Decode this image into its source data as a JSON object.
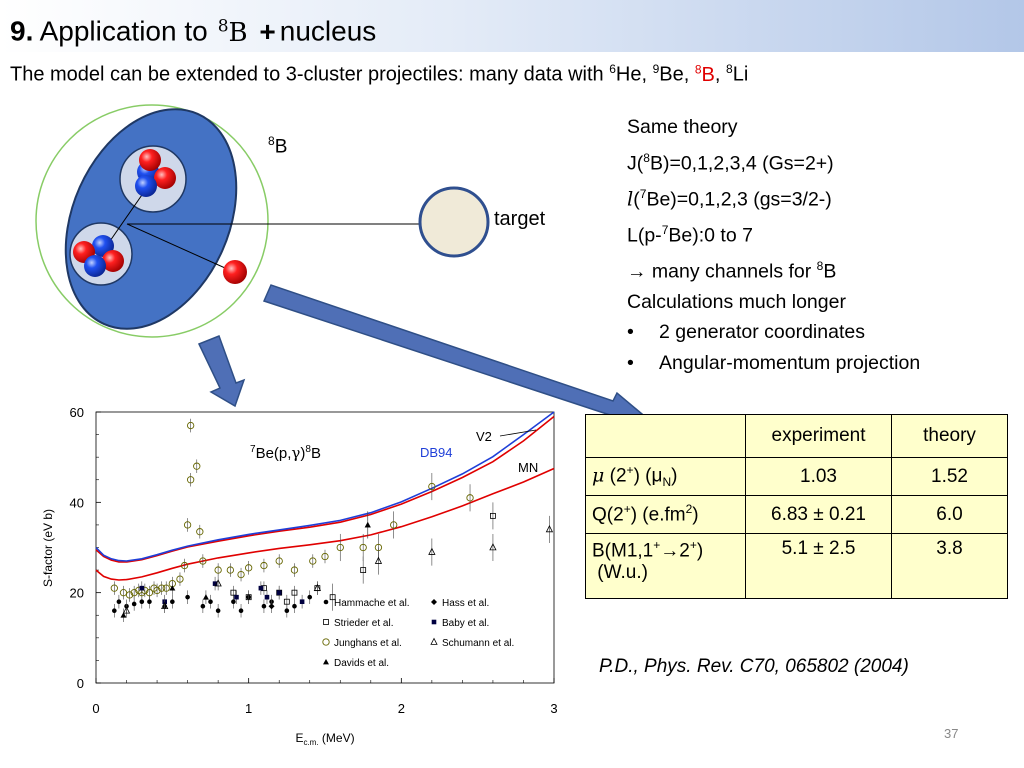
{
  "title": {
    "number": "9.",
    "text": "Application to",
    "nucleus_mass": "8",
    "nucleus_sym": "B",
    "plus": "+",
    "rest": "nucleus"
  },
  "subtitle": {
    "text": "The model can be extended to 3-cluster projectiles: many data with ",
    "he": "6",
    "he_sym": "He, ",
    "be": "9",
    "be_sym": "Be, ",
    "b": "8",
    "b_sym": "B",
    "comma": ", ",
    "li": "8",
    "li_sym": "Li"
  },
  "diagram": {
    "projectile_mass": "8",
    "projectile_sym": "B",
    "target_label": "target"
  },
  "info": {
    "line1": "Same theory",
    "line2_a": "J(",
    "line2_mass": "8",
    "line2_b": "B)=0,1,2,3,4  (Gs=2+)",
    "line3_l": "l",
    "line3_a": "(",
    "line3_mass": "7",
    "line3_b": "Be)=0,1,2,3  (gs=3/2-)",
    "line4_a": "L(p-",
    "line4_mass": "7",
    "line4_b": "Be):0 to 7",
    "line5_arrow": "→",
    "line5_a": " many channels for ",
    "line5_mass": "8",
    "line5_b": "B",
    "line6": "Calculations much longer",
    "bullet": "•",
    "bullet1": "2 generator coordinates",
    "bullet2": "Angular-momentum projection"
  },
  "table": {
    "headers": [
      "",
      "experiment",
      "theory"
    ],
    "row1": {
      "mu": "μ",
      "a": " (2",
      "sup": "+",
      "b": ") (μ",
      "sub": "N",
      "c": ")",
      "exp": "1.03",
      "th": "1.52"
    },
    "row2": {
      "a": "Q(2",
      "sup": "+",
      "b": ") (e.fm",
      "sup2": "2",
      "c": ")",
      "exp": "6.83 ± 0.21",
      "th": "6.0"
    },
    "row3": {
      "a": "B(M1,1",
      "sup": "+",
      "arrow": "→",
      "b": "2",
      "sup2": "+",
      "c": ")",
      "d": "(W.u.)",
      "exp": "5.1 ± 2.5",
      "th": "3.8"
    }
  },
  "reference": "P.D., Phys. Rev. C70, 065802 (2004)",
  "page_number": "37",
  "colors": {
    "title_bar_end": "#b3c7e8",
    "arrow": "#4f6fb6",
    "cluster": "#4472c4",
    "proton": "#e00000",
    "neutron": "#1f4fd8",
    "table_fill": "#ffffcc",
    "highlight": "#e00000"
  },
  "chart_data": {
    "type": "line",
    "title": "7Be(p,γ)8B",
    "title_parts": {
      "m1": "7",
      "a": "Be(p,",
      "g": "γ",
      "b": ")",
      "m2": "8",
      "c": "B"
    },
    "xlabel": "E",
    "xlabel_sub": "c.m.",
    "xlabel_unit": " (MeV)",
    "ylabel": "S-factor (eV b)",
    "xlim": [
      0,
      3
    ],
    "ylim": [
      0,
      60
    ],
    "xticks": [
      "0",
      "1",
      "2",
      "3"
    ],
    "yticks": [
      "0",
      "20",
      "40",
      "60"
    ],
    "curve_labels": {
      "v2": "V2",
      "db94": "DB94",
      "mn": "MN"
    },
    "series": [
      {
        "name": "V2",
        "color": "#e00000",
        "x": [
          0,
          0.05,
          0.1,
          0.15,
          0.2,
          0.3,
          0.4,
          0.5,
          0.6,
          0.8,
          1.0,
          1.2,
          1.4,
          1.6,
          1.8,
          2.0,
          2.2,
          2.4,
          2.6,
          2.8,
          3.0
        ],
        "y": [
          29.5,
          28.0,
          27.2,
          26.8,
          26.8,
          27.3,
          28.2,
          29.2,
          30.1,
          31.4,
          32.6,
          33.6,
          34.5,
          35.6,
          37.3,
          39.6,
          42.4,
          45.5,
          49.0,
          53.6,
          59.0
        ]
      },
      {
        "name": "DB94",
        "color": "#1f3fd8",
        "x": [
          0,
          0.05,
          0.1,
          0.15,
          0.2,
          0.3,
          0.4,
          0.5,
          0.6,
          0.8,
          1.0,
          1.2,
          1.4,
          1.6,
          1.8,
          2.0,
          2.2,
          2.4,
          2.6,
          2.8,
          3.0
        ],
        "y": [
          30.0,
          28.3,
          27.5,
          27.1,
          27.0,
          27.5,
          28.4,
          29.4,
          30.3,
          31.7,
          32.9,
          33.9,
          34.9,
          36.0,
          37.7,
          40.1,
          43.1,
          46.3,
          50.1,
          55.0,
          61.0
        ]
      },
      {
        "name": "MN",
        "color": "#e00000",
        "x": [
          0,
          0.05,
          0.1,
          0.15,
          0.2,
          0.3,
          0.4,
          0.5,
          0.6,
          0.8,
          1.0,
          1.2,
          1.4,
          1.6,
          1.8,
          2.0,
          2.2,
          2.4,
          2.6,
          2.8,
          3.0
        ],
        "y": [
          25.0,
          23.6,
          23.0,
          22.8,
          22.9,
          23.5,
          24.4,
          25.4,
          26.3,
          27.7,
          28.8,
          29.8,
          30.6,
          31.5,
          32.8,
          34.6,
          36.8,
          39.2,
          41.9,
          44.5,
          47.5
        ]
      }
    ],
    "datasets": [
      {
        "name": "Hammache et al.",
        "marker": "dot",
        "points": [
          [
            0.12,
            16
          ],
          [
            0.15,
            18
          ],
          [
            0.2,
            17
          ],
          [
            0.25,
            17.5
          ],
          [
            0.3,
            18
          ],
          [
            0.35,
            18
          ],
          [
            0.45,
            17
          ],
          [
            0.5,
            18
          ],
          [
            0.6,
            19
          ],
          [
            0.7,
            17
          ],
          [
            0.75,
            18
          ],
          [
            0.8,
            16
          ],
          [
            0.9,
            18
          ],
          [
            0.95,
            16
          ],
          [
            1.0,
            19
          ],
          [
            1.1,
            17
          ],
          [
            1.15,
            18
          ],
          [
            1.25,
            16
          ],
          [
            1.3,
            17
          ],
          [
            1.4,
            19
          ]
        ]
      },
      {
        "name": "Strieder et al.",
        "marker": "square-open",
        "points": [
          [
            0.9,
            20
          ],
          [
            1.0,
            19
          ],
          [
            1.1,
            21
          ],
          [
            1.2,
            20
          ],
          [
            1.25,
            18
          ],
          [
            1.3,
            20
          ],
          [
            1.45,
            21
          ],
          [
            1.55,
            19
          ],
          [
            1.75,
            25
          ],
          [
            2.6,
            37
          ]
        ]
      },
      {
        "name": "Junghans et al.",
        "marker": "circle-open",
        "points": [
          [
            0.12,
            21
          ],
          [
            0.18,
            20
          ],
          [
            0.22,
            19.5
          ],
          [
            0.25,
            20
          ],
          [
            0.28,
            20.5
          ],
          [
            0.3,
            20
          ],
          [
            0.32,
            20.5
          ],
          [
            0.35,
            20
          ],
          [
            0.38,
            21
          ],
          [
            0.4,
            20.5
          ],
          [
            0.43,
            21
          ],
          [
            0.46,
            21
          ],
          [
            0.5,
            22
          ],
          [
            0.55,
            23
          ],
          [
            0.58,
            26
          ],
          [
            0.6,
            35
          ],
          [
            0.62,
            45
          ],
          [
            0.62,
            57
          ],
          [
            0.66,
            48
          ],
          [
            0.68,
            33.5
          ],
          [
            0.7,
            27
          ],
          [
            0.8,
            25
          ],
          [
            0.88,
            25
          ],
          [
            0.95,
            24
          ],
          [
            1.0,
            25.5
          ],
          [
            1.1,
            26
          ],
          [
            1.2,
            27
          ],
          [
            1.3,
            25
          ],
          [
            1.42,
            27
          ],
          [
            1.5,
            28
          ],
          [
            1.6,
            30
          ],
          [
            1.75,
            30
          ],
          [
            1.85,
            30
          ],
          [
            1.95,
            35
          ],
          [
            2.2,
            43.5
          ],
          [
            2.45,
            41
          ]
        ]
      },
      {
        "name": "Davids et al.",
        "marker": "triangle-filled",
        "points": [
          [
            0.18,
            15
          ],
          [
            0.5,
            21
          ],
          [
            0.72,
            19
          ],
          [
            1.78,
            35
          ],
          [
            1.78,
            35
          ]
        ]
      },
      {
        "name": "Hass et al.",
        "marker": "diamond-filled",
        "points": [
          [
            1.15,
            17
          ]
        ]
      },
      {
        "name": "Baby et al.",
        "marker": "square-filled",
        "points": [
          [
            0.3,
            21
          ],
          [
            0.45,
            18
          ],
          [
            0.78,
            22
          ],
          [
            0.92,
            19
          ],
          [
            1.08,
            21
          ],
          [
            1.12,
            19
          ],
          [
            1.2,
            20
          ],
          [
            1.35,
            18
          ]
        ]
      },
      {
        "name": "Schumann et al.",
        "marker": "triangle-open",
        "points": [
          [
            0.2,
            16
          ],
          [
            0.45,
            17
          ],
          [
            0.8,
            22
          ],
          [
            1.45,
            21
          ],
          [
            1.85,
            27
          ],
          [
            2.2,
            29
          ],
          [
            2.6,
            30
          ],
          [
            2.97,
            34
          ]
        ]
      }
    ]
  }
}
